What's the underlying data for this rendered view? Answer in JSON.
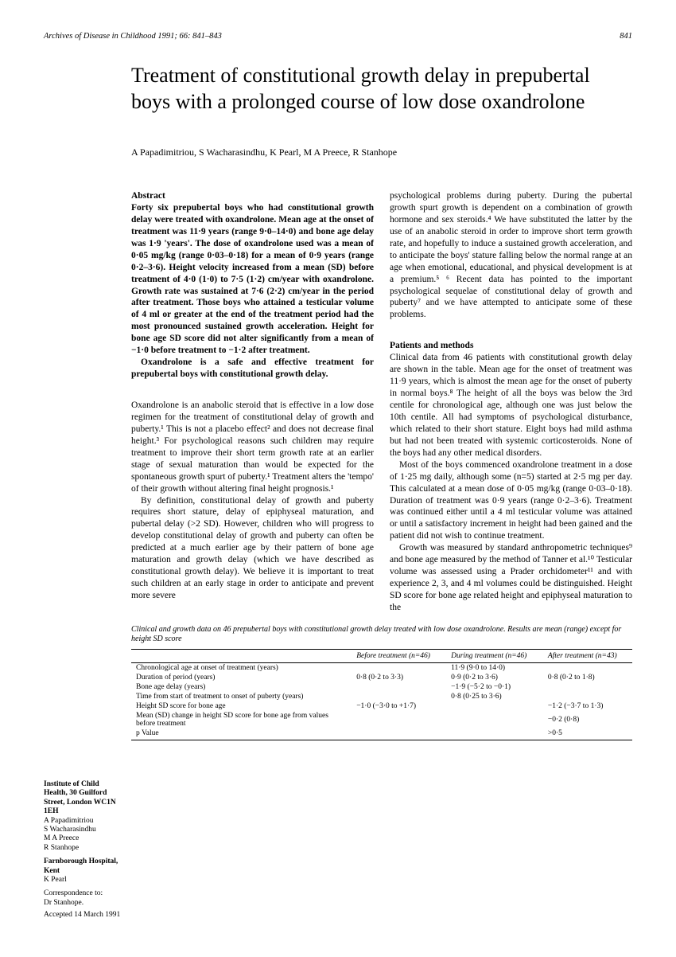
{
  "journal_ref": "Archives of Disease in Childhood 1991; 66: 841–843",
  "page_number": "841",
  "title": "Treatment of constitutional growth delay in prepubertal boys with a prolonged course of low dose oxandrolone",
  "authors": "A Papadimitriou, S Wacharasindhu, K Pearl, M A Preece, R Stanhope",
  "abstract_head": "Abstract",
  "abstract_p1": "Forty six prepubertal boys who had constitutional growth delay were treated with oxandrolone. Mean age at the onset of treatment was 11·9 years (range 9·0–14·0) and bone age delay was 1·9 'years'. The dose of oxandrolone used was a mean of 0·05 mg/kg (range 0·03–0·18) for a mean of 0·9 years (range 0·2–3·6). Height velocity increased from a mean (SD) before treatment of 4·0 (1·0) to 7·5 (1·2) cm/year with oxandrolone. Growth rate was sustained at 7·6 (2·2) cm/year in the period after treatment. Those boys who attained a testicular volume of 4 ml or greater at the end of the treatment period had the most pronounced sustained growth acceleration. Height for bone age SD score did not alter significantly from a mean of −1·0 before treatment to −1·2 after treatment.",
  "abstract_p2": "Oxandrolone is a safe and effective treatment for prepubertal boys with constitutional growth delay.",
  "col1_p1": "Oxandrolone is an anabolic steroid that is effective in a low dose regimen for the treatment of constitutional delay of growth and puberty.¹ This is not a placebo effect² and does not decrease final height.³ For psychological reasons such children may require treatment to improve their short term growth rate at an earlier stage of sexual maturation than would be expected for the spontaneous growth spurt of puberty.¹ Treatment alters the 'tempo' of their growth without altering final height prognosis.¹",
  "col1_p2": "By definition, constitutional delay of growth and puberty requires short stature, delay of epiphyseal maturation, and pubertal delay (>2 SD). However, children who will progress to develop constitutional delay of growth and puberty can often be predicted at a much earlier age by their pattern of bone age maturation and growth delay (which we have described as constitutional growth delay). We believe it is important to treat such children at an early stage in order to anticipate and prevent more severe",
  "col2_p1": "psychological problems during puberty. During the pubertal growth spurt growth is dependent on a combination of growth hormone and sex steroids.⁴ We have substituted the latter by the use of an anabolic steroid in order to improve short term growth rate, and hopefully to induce a sustained growth acceleration, and to anticipate the boys' stature falling below the normal range at an age when emotional, educational, and physical development is at a premium.⁵ ⁶ Recent data has pointed to the important psychological sequelae of constitutional delay of growth and puberty⁷ and we have attempted to anticipate some of these problems.",
  "patients_head": "Patients and methods",
  "col2_p2": "Clinical data from 46 patients with constitutional growth delay are shown in the table. Mean age for the onset of treatment was 11·9 years, which is almost the mean age for the onset of puberty in normal boys.⁸ The height of all the boys was below the 3rd centile for chronological age, although one was just below the 10th centile. All had symptoms of psychological disturbance, which related to their short stature. Eight boys had mild asthma but had not been treated with systemic corticosteroids. None of the boys had any other medical disorders.",
  "col2_p3": "Most of the boys commenced oxandrolone treatment in a dose of 1·25 mg daily, although some (n=5) started at 2·5 mg per day. This calculated at a mean dose of 0·05 mg/kg (range 0·03–0·18). Duration of treatment was 0·9 years (range 0·2–3·6). Treatment was continued either until a 4 ml testicular volume was attained or until a satisfactory increment in height had been gained and the patient did not wish to continue treatment.",
  "col2_p4": "Growth was measured by standard anthropometric techniques⁹ and bone age measured by the method of Tanner et al.¹⁰ Testicular volume was assessed using a Prader orchidometer¹¹ and with experience 2, 3, and 4 ml volumes could be distinguished. Height SD score for bone age related height and epiphyseal maturation to the",
  "affil": {
    "inst1_b": "Institute of Child Health, 30 Guilford Street, London WC1N 1EH",
    "inst1_names": "A Papadimitriou\nS Wacharasindhu\nM A Preece\nR Stanhope",
    "inst2_b": "Farnborough Hospital, Kent",
    "inst2_names": "K Pearl",
    "corr_b": "Correspondence to:",
    "corr": "Dr Stanhope.",
    "accepted": "Accepted 14 March 1991"
  },
  "table_caption": "Clinical and growth data on 46 prepubertal boys with constitutional growth delay treated with low dose oxandrolone. Results are mean (range) except for height SD score",
  "table": {
    "headers": [
      "",
      "Before treatment (n=46)",
      "During treatment (n=46)",
      "After treatment (n=43)"
    ],
    "rows": [
      [
        "Chronological age at onset of treatment (years)",
        "",
        "11·9 (9·0 to 14·0)",
        ""
      ],
      [
        "Duration of period (years)",
        "0·8 (0·2 to 3·3)",
        "0·9 (0·2 to 3·6)",
        "0·8 (0·2 to 1·8)"
      ],
      [
        "Bone age delay (years)",
        "",
        "−1·9 (−5·2 to −0·1)",
        ""
      ],
      [
        "Time from start of treatment to onset of puberty (years)",
        "",
        "0·8 (0·25 to 3·6)",
        ""
      ],
      [
        "Height SD score for bone age",
        "−1·0 (−3·0 to +1·7)",
        "",
        "−1·2 (−3·7 to 1·3)"
      ],
      [
        "Mean (SD) change in height SD score for bone age from values before treatment",
        "",
        "",
        "−0·2 (0·8)"
      ],
      [
        "p Value",
        "",
        "",
        ">0·5"
      ]
    ]
  }
}
